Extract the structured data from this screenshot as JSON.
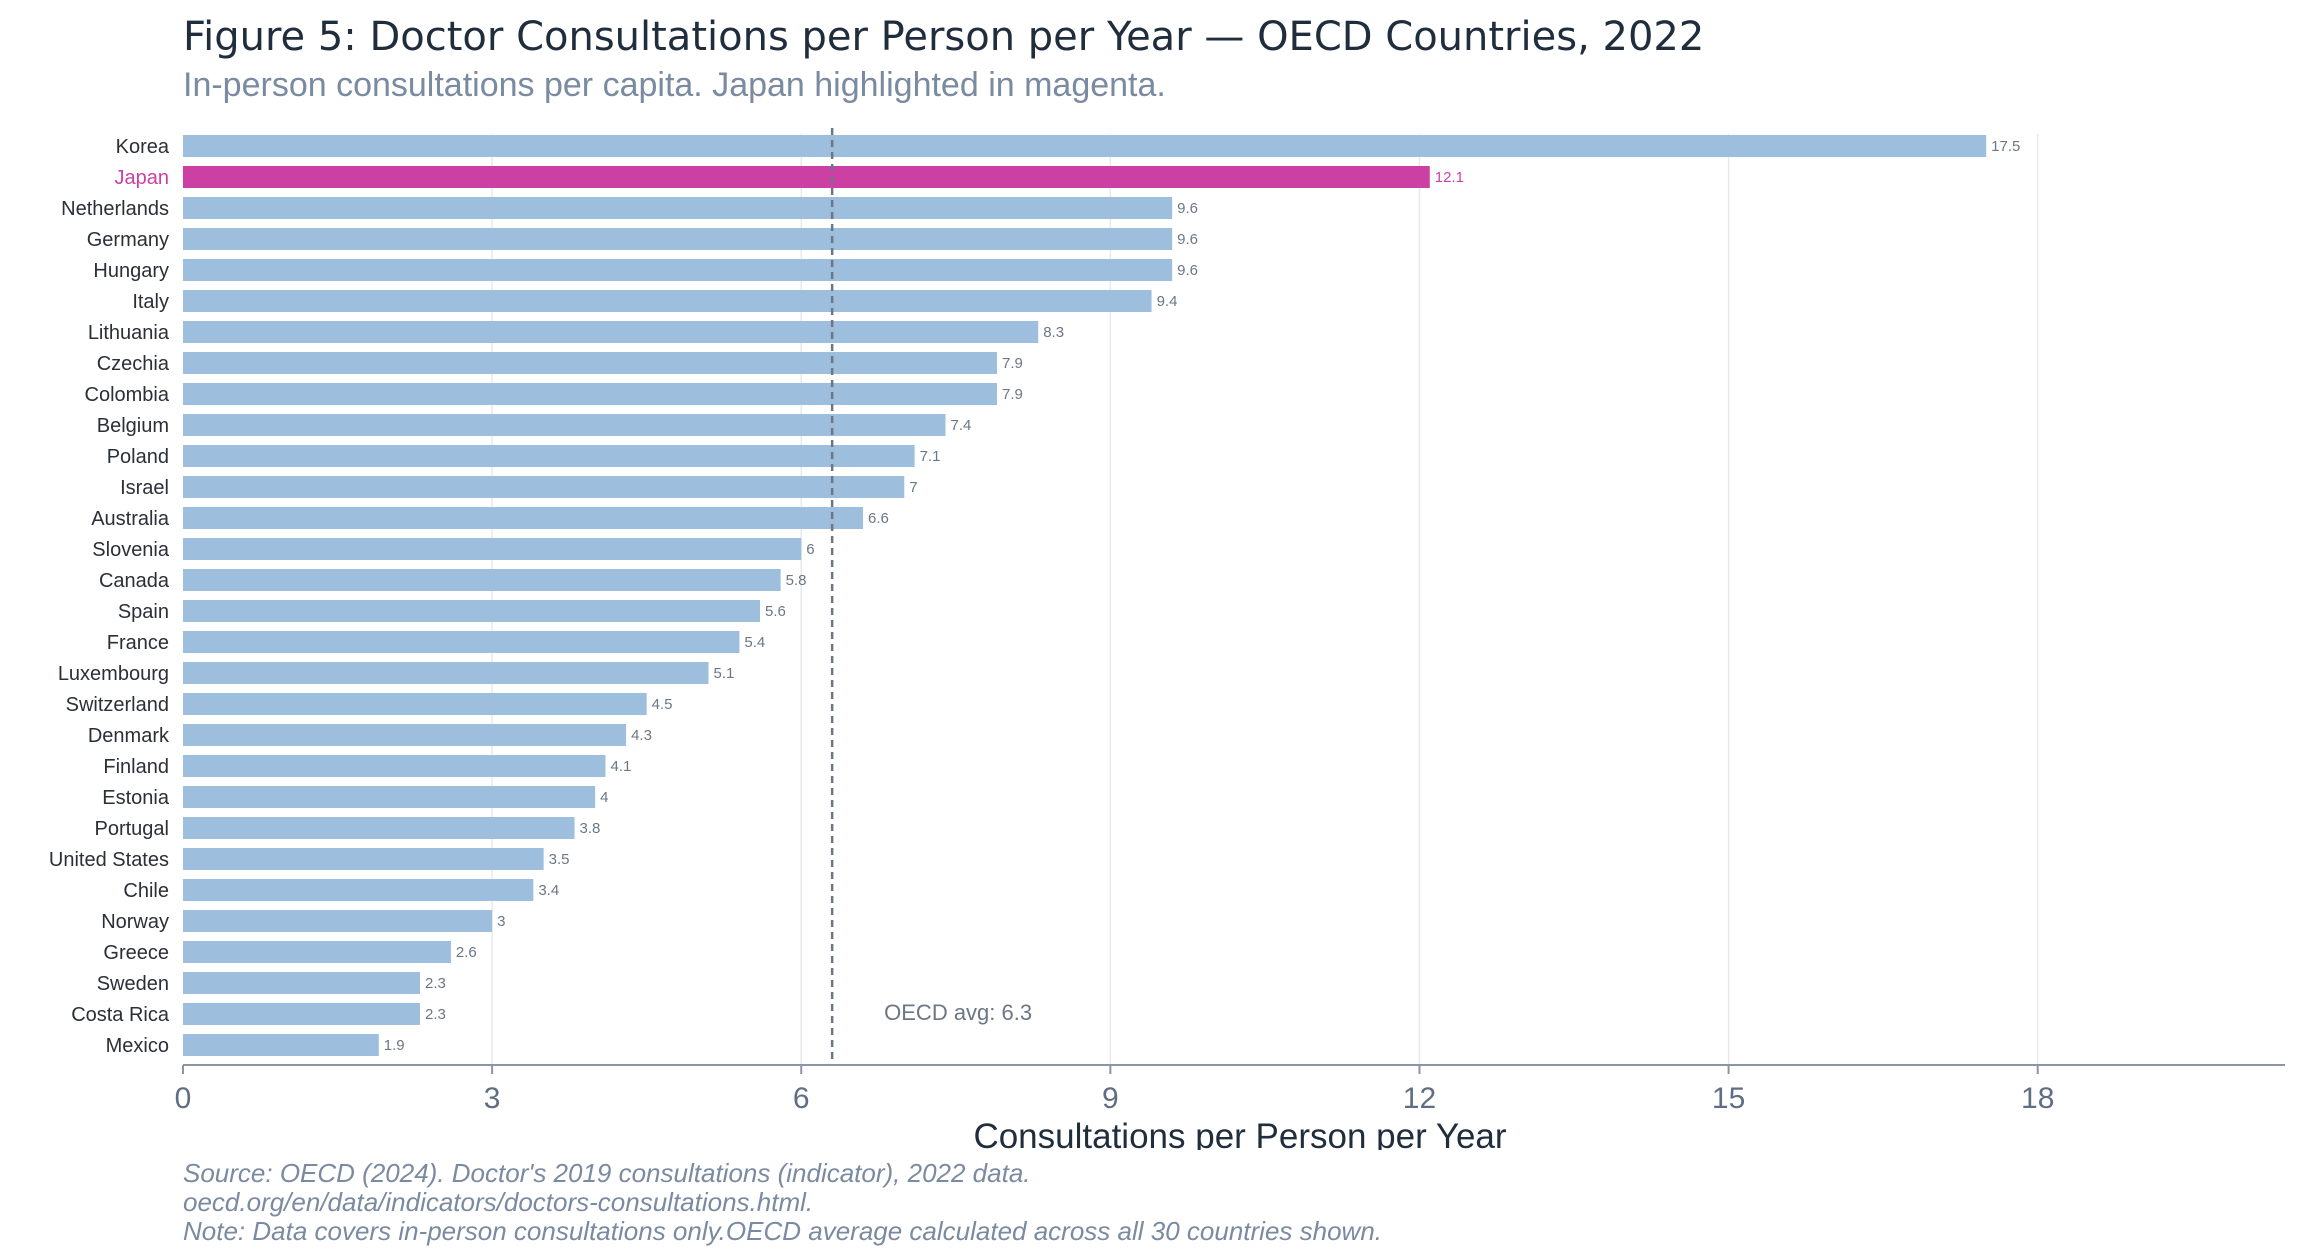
{
  "figure": {
    "title": "Figure 5: Doctor Consultations per Person per Year — OECD Countries, 2022",
    "subtitle": "In-person consultations per capita. Japan highlighted in magenta.",
    "source_line1": "Source: OECD (2024). Doctor's 2019 consultations (indicator), 2022 data.",
    "source_line2": "oecd.org/en/data/indicators/doctors-consultations.html.",
    "note": "Note: Data covers in-person consultations only.OECD average calculated across all 30 countries shown."
  },
  "chart_data": {
    "type": "bar",
    "orientation": "horizontal",
    "categories": [
      "Korea",
      "Japan",
      "Netherlands",
      "Germany",
      "Hungary",
      "Italy",
      "Lithuania",
      "Czechia",
      "Colombia",
      "Belgium",
      "Poland",
      "Israel",
      "Australia",
      "Slovenia",
      "Canada",
      "Spain",
      "France",
      "Luxembourg",
      "Switzerland",
      "Denmark",
      "Finland",
      "Estonia",
      "Portugal",
      "United States",
      "Chile",
      "Norway",
      "Greece",
      "Sweden",
      "Costa Rica",
      "Mexico"
    ],
    "values": [
      17.5,
      12.1,
      9.6,
      9.6,
      9.6,
      9.4,
      8.3,
      7.9,
      7.9,
      7.4,
      7.1,
      7,
      6.6,
      6,
      5.8,
      5.6,
      5.4,
      5.1,
      4.5,
      4.3,
      4.1,
      4,
      3.8,
      3.5,
      3.4,
      3,
      2.6,
      2.3,
      2.3,
      1.9
    ],
    "value_labels": [
      "17.5",
      "12.1",
      "9.6",
      "9.6",
      "9.6",
      "9.4",
      "8.3",
      "7.9",
      "7.9",
      "7.4",
      "7.1",
      "7",
      "6.6",
      "6",
      "5.8",
      "5.6",
      "5.4",
      "5.1",
      "4.5",
      "4.3",
      "4.1",
      "4",
      "3.8",
      "3.5",
      "3.4",
      "3",
      "2.6",
      "2.3",
      "2.3",
      "1.9"
    ],
    "highlight": "Japan",
    "xlabel": "Consultations per Person per Year",
    "ylabel": "",
    "xlim": [
      0,
      20.4
    ],
    "xticks": [
      0,
      3,
      6,
      9,
      12,
      15,
      18
    ],
    "xtick_labels": [
      "0",
      "3",
      "6",
      "9",
      "12",
      "15",
      "18"
    ],
    "reference_line": {
      "value": 6.3,
      "label": "OECD avg: 6.3"
    },
    "grid": "vertical",
    "colors": {
      "bar": "#9dbedd",
      "highlight": "#cc3fa3",
      "reference": "#6b7785",
      "grid": "#e6e9ee",
      "axis": "#8a96a6",
      "label": "#2b2f36",
      "value_label": "#6b7785",
      "tick": "#5f6e82"
    }
  }
}
